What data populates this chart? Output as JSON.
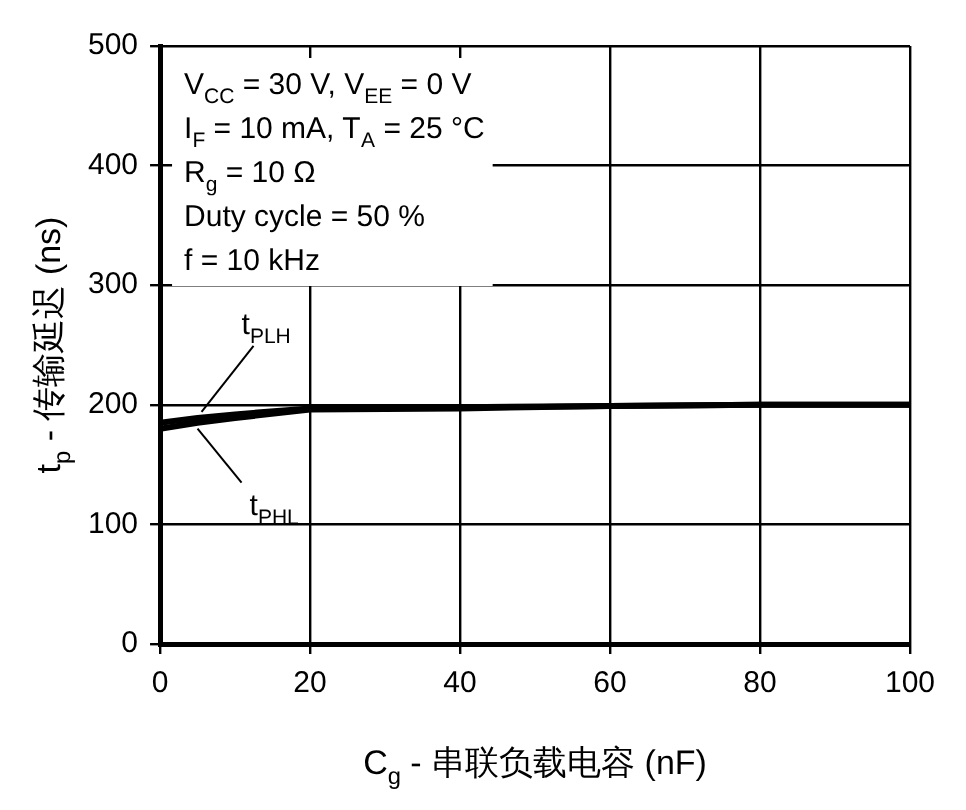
{
  "chart_data": {
    "type": "line",
    "xlabel": "C$_{g}$ - 串联负载电容 (nF)",
    "ylabel": "t$_{p}$ - 传输延迟 (ns)",
    "annotations": [
      "V$_{CC}$ = 30 V, V$_{EE}$ = 0 V",
      "I$_{F}$ = 10 mA, T$_{A}$ = 25 °C",
      "R$_{g}$ = 10 Ω",
      "Duty cycle = 50 %",
      "f = 10 kHz"
    ],
    "x": [
      0,
      5,
      10,
      20,
      40,
      60,
      80,
      100
    ],
    "series": [
      {
        "name": "t$_{PLH}$",
        "color": "#000000",
        "values": [
          185,
          189,
          192,
          197,
          198,
          199,
          200,
          200
        ]
      },
      {
        "name": "t$_{PHL}$",
        "color": "#000000",
        "values": [
          180,
          185,
          189,
          196,
          197,
          199,
          200,
          200
        ]
      }
    ],
    "xlim": [
      0,
      100
    ],
    "xticks": [
      0,
      20,
      40,
      60,
      80,
      100
    ],
    "ylim": [
      0,
      500
    ],
    "yticks": [
      0,
      100,
      200,
      300,
      400,
      500
    ],
    "grid": true,
    "marker": "none",
    "line_style": "solid"
  }
}
